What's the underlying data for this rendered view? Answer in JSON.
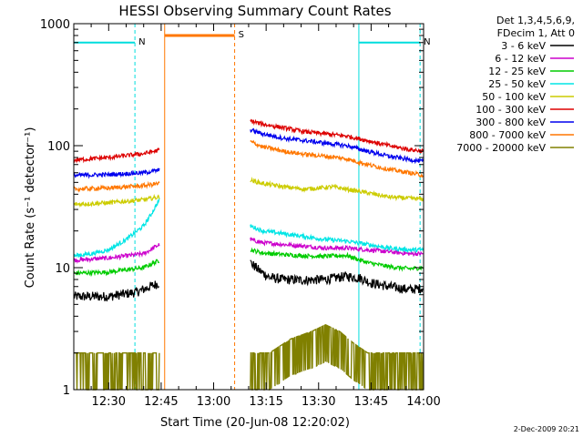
{
  "chart_data": {
    "type": "line",
    "title": "HESSI Observing Summary Count Rates",
    "xlabel": "Start Time (20-Jun-08 12:20:02)",
    "ylabel": "Count Rate (s⁻¹ detector⁻¹)",
    "x_unit": "minutes after 12:00 UT",
    "xlim": [
      20.03,
      120
    ],
    "ylim": [
      1,
      1000
    ],
    "y_scale": "log",
    "grid": false,
    "legend_position": "top-right outside",
    "legend_header": [
      "Det 1,3,4,5,6,9,",
      "FDecim 1, Att 0"
    ],
    "footer": "2-Dec-2009 20:21",
    "x_ticks": [
      {
        "t": 30,
        "label": "12:30"
      },
      {
        "t": 45,
        "label": "12:45"
      },
      {
        "t": 60,
        "label": "13:00"
      },
      {
        "t": 75,
        "label": "13:15"
      },
      {
        "t": 90,
        "label": "13:30"
      },
      {
        "t": 105,
        "label": "13:45"
      },
      {
        "t": 120,
        "label": "14:00"
      }
    ],
    "y_ticks": [
      {
        "v": 1,
        "label": "1"
      },
      {
        "v": 10,
        "label": "10"
      },
      {
        "v": 100,
        "label": "100"
      },
      {
        "v": 1000,
        "label": "1000"
      }
    ],
    "series": [
      {
        "name": "3 - 6 keV",
        "color": "#000000",
        "segments": [
          {
            "x": [
              20,
              30,
              38,
              44.5
            ],
            "y": [
              5.8,
              5.8,
              6.3,
              7.5
            ]
          },
          {
            "x": [
              70.5,
              73,
              76,
              80,
              86,
              92,
              98,
              102,
              105,
              110,
              116,
              120
            ],
            "y": [
              11,
              9.5,
              8.3,
              8,
              7.9,
              8,
              8.5,
              8.2,
              7.5,
              7,
              6.6,
              6.8
            ]
          }
        ]
      },
      {
        "name": "6 - 12 keV",
        "color": "#cc00cc",
        "segments": [
          {
            "x": [
              20,
              30,
              40,
              44.5
            ],
            "y": [
              11.5,
              12,
              13,
              15.5
            ]
          },
          {
            "x": [
              70.5,
              74,
              80,
              86,
              92,
              98,
              104,
              110,
              116,
              120
            ],
            "y": [
              17,
              16,
              15.5,
              15,
              14.5,
              14.5,
              14,
              13.5,
              13,
              13
            ]
          }
        ]
      },
      {
        "name": "12 - 25 keV",
        "color": "#00cc00",
        "segments": [
          {
            "x": [
              20,
              30,
              40,
              44.5
            ],
            "y": [
              9,
              9.2,
              10,
              11.5
            ]
          },
          {
            "x": [
              70.5,
              74,
              80,
              86,
              92,
              98,
              104,
              110,
              116,
              120
            ],
            "y": [
              14,
              13.2,
              12.8,
              12.5,
              12.4,
              12.6,
              11,
              10.2,
              9.8,
              10
            ]
          }
        ]
      },
      {
        "name": "25 - 50 keV",
        "color": "#00e5e5",
        "segments": [
          {
            "x": [
              20,
              25,
              30,
              35,
              40,
              42,
              44.5
            ],
            "y": [
              12.5,
              13,
              14,
              17,
              22,
              27,
              36
            ]
          },
          {
            "x": [
              70.5,
              74,
              80,
              86,
              92,
              98,
              104,
              110,
              116,
              120
            ],
            "y": [
              22,
              20,
              19,
              18,
              17,
              16.5,
              15.5,
              14.5,
              14,
              14
            ]
          }
        ]
      },
      {
        "name": "50 - 100 keV",
        "color": "#cccc00",
        "segments": [
          {
            "x": [
              20,
              30,
              40,
              44.5
            ],
            "y": [
              33,
              34,
              36,
              38
            ]
          },
          {
            "x": [
              70.5,
              74,
              80,
              86,
              90,
              94,
              98,
              104,
              110,
              116,
              120
            ],
            "y": [
              52,
              49,
              46,
              44,
              45,
              46,
              44,
              41,
              38,
              37,
              36.5
            ]
          }
        ]
      },
      {
        "name": "100 - 300 keV",
        "color": "#dd0000",
        "segments": [
          {
            "x": [
              20,
              30,
              40,
              44.5
            ],
            "y": [
              76,
              80,
              86,
              92
            ]
          },
          {
            "x": [
              70.5,
              74,
              80,
              86,
              92,
              98,
              104,
              110,
              116,
              120
            ],
            "y": [
              160,
              150,
              140,
              130,
              125,
              120,
              110,
              100,
              93,
              90
            ]
          }
        ]
      },
      {
        "name": "300 - 800 keV",
        "color": "#0000ee",
        "segments": [
          {
            "x": [
              20,
              30,
              40,
              44.5
            ],
            "y": [
              57,
              58,
              60,
              63
            ]
          },
          {
            "x": [
              70.5,
              74,
              80,
              86,
              92,
              98,
              104,
              110,
              116,
              120
            ],
            "y": [
              135,
              125,
              115,
              110,
              105,
              100,
              90,
              82,
              77,
              74
            ]
          }
        ]
      },
      {
        "name": "800 - 7000 keV",
        "color": "#ff7700",
        "segments": [
          {
            "x": [
              20,
              30,
              40,
              44.5
            ],
            "y": [
              44,
              45,
              47,
              49
            ]
          },
          {
            "x": [
              70.5,
              74,
              80,
              86,
              92,
              98,
              104,
              110,
              116,
              120
            ],
            "y": [
              108,
              98,
              90,
              85,
              82,
              78,
              70,
              64,
              60,
              57
            ]
          }
        ]
      },
      {
        "name": "7000 - 20000 keV",
        "color": "#808000",
        "segments": [
          {
            "x": [
              20,
              30,
              38,
              44.5
            ],
            "y": [
              2,
              2,
              2,
              2
            ]
          },
          {
            "x": [
              70.5,
              76,
              82,
              88,
              92,
              96,
              100,
              104,
              112,
              120
            ],
            "y": [
              2,
              2,
              2.6,
              3,
              3.4,
              3,
              2.4,
              2,
              2,
              2
            ]
          }
        ]
      }
    ],
    "annotations": [
      {
        "label": "N",
        "color": "#00dddd",
        "kind": "night",
        "x_range": [
          20.03,
          37.5
        ],
        "level": 700
      },
      {
        "label": "N",
        "color": "#00dddd",
        "kind": "night",
        "x_range": [
          101.5,
          119
        ],
        "level": 700
      },
      {
        "label": "S",
        "color": "#ff7700",
        "kind": "saa",
        "x_range": [
          46,
          66
        ],
        "level": 800
      }
    ]
  }
}
